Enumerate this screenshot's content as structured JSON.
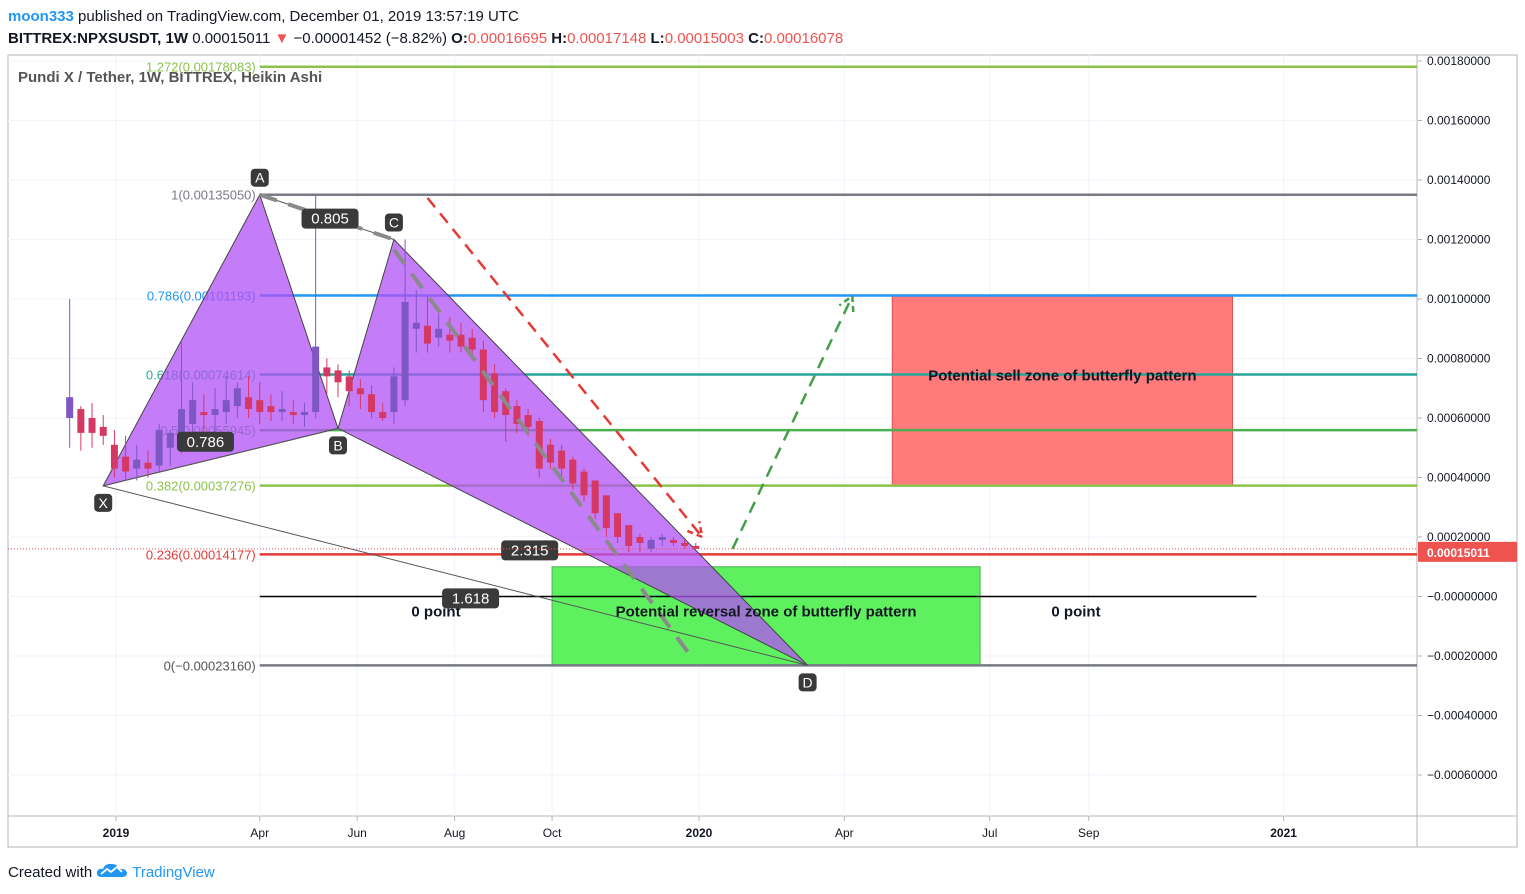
{
  "header": {
    "publisher": "moon333",
    "published_text": "published on TradingView.com, December 01, 2019 13:57:19 UTC",
    "symbol": "BITTREX:NPXSUSDT, 1W",
    "last_price": "0.00015011",
    "change_arrow": "▼",
    "change": "−0.00001452 (−8.82%)",
    "ohlc": [
      {
        "label": "O:",
        "value": "0.00016695"
      },
      {
        "label": "H:",
        "value": "0.00017148"
      },
      {
        "label": "L:",
        "value": "0.00015003"
      },
      {
        "label": "C:",
        "value": "0.00016078"
      }
    ]
  },
  "footer": {
    "created_with": "Created with",
    "brand": "TradingView",
    "icon": "tradingview-cloud-icon"
  },
  "chart_data": {
    "type": "candlestick",
    "title": "Pundi X / Tether, 1W, BITTREX, Heikin Ashi",
    "y_axis": {
      "ylim": [
        -0.0008,
        0.0018
      ],
      "ticks": [
        0.0018,
        0.0016,
        0.0014,
        0.0012,
        0.001,
        0.0008,
        0.0006,
        0.0004,
        0.0002,
        0.0,
        -0.0002,
        -0.0004,
        -0.0006
      ],
      "tick_labels": [
        "0.00180000",
        "0.00160000",
        "0.00140000",
        "0.00120000",
        "0.00100000",
        "0.00080000",
        "0.00060000",
        "0.00040000",
        "0.00020000",
        "−0.00000000",
        "−0.00020000",
        "−0.00040000",
        "−0.00060000"
      ],
      "last_price_label": "0.00015011",
      "last_price_value": 0.00015011
    },
    "x_axis": {
      "date_range": [
        "2018-11-19",
        "2021-03-15"
      ],
      "ticks": [
        {
          "date": "2019-01-01",
          "label": "2019",
          "bold": true
        },
        {
          "date": "2019-04-01",
          "label": "Apr"
        },
        {
          "date": "2019-06-01",
          "label": "Jun"
        },
        {
          "date": "2019-08-01",
          "label": "Aug"
        },
        {
          "date": "2019-10-01",
          "label": "Oct"
        },
        {
          "date": "2020-01-01",
          "label": "2020",
          "bold": true
        },
        {
          "date": "2020-04-01",
          "label": "Apr"
        },
        {
          "date": "2020-07-01",
          "label": "Jul"
        },
        {
          "date": "2020-09-01",
          "label": "Sep"
        },
        {
          "date": "2021-01-01",
          "label": "2021",
          "bold": true
        }
      ]
    },
    "grid": true,
    "up_color": "#7e57c2",
    "down_color": "#d63864",
    "candles": [
      {
        "date": "2018-12-03",
        "o": 0.0006,
        "h": 0.001,
        "l": 0.0005,
        "c": 0.00067
      },
      {
        "date": "2018-12-10",
        "o": 0.00063,
        "h": 0.00064,
        "l": 0.00049,
        "c": 0.00055
      },
      {
        "date": "2018-12-17",
        "o": 0.0006,
        "h": 0.00065,
        "l": 0.0005,
        "c": 0.00055
      },
      {
        "date": "2018-12-24",
        "o": 0.00057,
        "h": 0.00061,
        "l": 0.00051,
        "c": 0.00054
      },
      {
        "date": "2018-12-31",
        "o": 0.00051,
        "h": 0.00056,
        "l": 0.0004,
        "c": 0.00043
      },
      {
        "date": "2019-01-07",
        "o": 0.00047,
        "h": 0.00054,
        "l": 0.00039,
        "c": 0.00042
      },
      {
        "date": "2019-01-14",
        "o": 0.00043,
        "h": 0.00051,
        "l": 0.00039,
        "c": 0.00046
      },
      {
        "date": "2019-01-21",
        "o": 0.00045,
        "h": 0.00049,
        "l": 0.0004,
        "c": 0.00043
      },
      {
        "date": "2019-01-28",
        "o": 0.00044,
        "h": 0.00058,
        "l": 0.00042,
        "c": 0.00056
      },
      {
        "date": "2019-02-04",
        "o": 0.0005,
        "h": 0.00056,
        "l": 0.00044,
        "c": 0.00055
      },
      {
        "date": "2019-02-11",
        "o": 0.00053,
        "h": 0.00086,
        "l": 0.00048,
        "c": 0.00063
      },
      {
        "date": "2019-02-18",
        "o": 0.00058,
        "h": 0.00072,
        "l": 0.00052,
        "c": 0.00066
      },
      {
        "date": "2019-02-25",
        "o": 0.00062,
        "h": 0.00068,
        "l": 0.00052,
        "c": 0.00061
      },
      {
        "date": "2019-03-04",
        "o": 0.00061,
        "h": 0.0007,
        "l": 0.00054,
        "c": 0.00063
      },
      {
        "date": "2019-03-11",
        "o": 0.00062,
        "h": 0.00074,
        "l": 0.00058,
        "c": 0.00066
      },
      {
        "date": "2019-03-18",
        "o": 0.00064,
        "h": 0.00072,
        "l": 0.0006,
        "c": 0.0007
      },
      {
        "date": "2019-03-25",
        "o": 0.00067,
        "h": 0.00074,
        "l": 0.0006,
        "c": 0.00063
      },
      {
        "date": "2019-04-01",
        "o": 0.00066,
        "h": 0.00072,
        "l": 0.00058,
        "c": 0.00062
      },
      {
        "date": "2019-04-08",
        "o": 0.00064,
        "h": 0.00068,
        "l": 0.00059,
        "c": 0.00062
      },
      {
        "date": "2019-04-15",
        "o": 0.00062,
        "h": 0.00069,
        "l": 0.00059,
        "c": 0.00063
      },
      {
        "date": "2019-04-22",
        "o": 0.00062,
        "h": 0.00066,
        "l": 0.00058,
        "c": 0.00061
      },
      {
        "date": "2019-04-29",
        "o": 0.00061,
        "h": 0.00065,
        "l": 0.00057,
        "c": 0.00062
      },
      {
        "date": "2019-05-06",
        "o": 0.00062,
        "h": 0.00135,
        "l": 0.0006,
        "c": 0.00084
      },
      {
        "date": "2019-05-13",
        "o": 0.00077,
        "h": 0.0008,
        "l": 0.00068,
        "c": 0.00074
      },
      {
        "date": "2019-05-20",
        "o": 0.00076,
        "h": 0.00078,
        "l": 0.00067,
        "c": 0.00072
      },
      {
        "date": "2019-05-27",
        "o": 0.00074,
        "h": 0.00076,
        "l": 0.00064,
        "c": 0.00069
      },
      {
        "date": "2019-06-03",
        "o": 0.0007,
        "h": 0.00073,
        "l": 0.00063,
        "c": 0.00068
      },
      {
        "date": "2019-06-10",
        "o": 0.00068,
        "h": 0.00071,
        "l": 0.0006,
        "c": 0.00062
      },
      {
        "date": "2019-06-17",
        "o": 0.00062,
        "h": 0.00065,
        "l": 0.00059,
        "c": 0.0006
      },
      {
        "date": "2019-06-24",
        "o": 0.00062,
        "h": 0.00077,
        "l": 0.00058,
        "c": 0.00074
      },
      {
        "date": "2019-07-01",
        "o": 0.00066,
        "h": 0.0012,
        "l": 0.00064,
        "c": 0.00099
      },
      {
        "date": "2019-07-08",
        "o": 0.0009,
        "h": 0.00103,
        "l": 0.00082,
        "c": 0.00092
      },
      {
        "date": "2019-07-15",
        "o": 0.00091,
        "h": 0.00101,
        "l": 0.00082,
        "c": 0.00085
      },
      {
        "date": "2019-07-22",
        "o": 0.00087,
        "h": 0.00095,
        "l": 0.00084,
        "c": 0.0009
      },
      {
        "date": "2019-07-29",
        "o": 0.00088,
        "h": 0.00094,
        "l": 0.00082,
        "c": 0.00086
      },
      {
        "date": "2019-08-05",
        "o": 0.00088,
        "h": 0.00092,
        "l": 0.00082,
        "c": 0.00084
      },
      {
        "date": "2019-08-12",
        "o": 0.00087,
        "h": 0.0009,
        "l": 0.0008,
        "c": 0.00083
      },
      {
        "date": "2019-08-19",
        "o": 0.00083,
        "h": 0.00086,
        "l": 0.00062,
        "c": 0.00066
      },
      {
        "date": "2019-08-26",
        "o": 0.00075,
        "h": 0.00078,
        "l": 0.0006,
        "c": 0.00062
      },
      {
        "date": "2019-09-02",
        "o": 0.00069,
        "h": 0.0007,
        "l": 0.00052,
        "c": 0.00061
      },
      {
        "date": "2019-09-09",
        "o": 0.00064,
        "h": 0.00066,
        "l": 0.00055,
        "c": 0.00058
      },
      {
        "date": "2019-09-16",
        "o": 0.00061,
        "h": 0.00063,
        "l": 0.00054,
        "c": 0.00057
      },
      {
        "date": "2019-09-23",
        "o": 0.00059,
        "h": 0.0006,
        "l": 0.0004,
        "c": 0.00043
      },
      {
        "date": "2019-09-30",
        "o": 0.00051,
        "h": 0.00053,
        "l": 0.00043,
        "c": 0.00045
      },
      {
        "date": "2019-10-07",
        "o": 0.00049,
        "h": 0.00051,
        "l": 0.0004,
        "c": 0.00043
      },
      {
        "date": "2019-10-14",
        "o": 0.00046,
        "h": 0.00047,
        "l": 0.00036,
        "c": 0.00038
      },
      {
        "date": "2019-10-21",
        "o": 0.00042,
        "h": 0.00043,
        "l": 0.00032,
        "c": 0.00034
      },
      {
        "date": "2019-10-28",
        "o": 0.00039,
        "h": 0.00039,
        "l": 0.00026,
        "c": 0.00028
      },
      {
        "date": "2019-11-04",
        "o": 0.00034,
        "h": 0.00034,
        "l": 0.0002,
        "c": 0.00023
      },
      {
        "date": "2019-11-11",
        "o": 0.00028,
        "h": 0.00028,
        "l": 0.00018,
        "c": 0.0002
      },
      {
        "date": "2019-11-18",
        "o": 0.00024,
        "h": 0.00024,
        "l": 0.00015,
        "c": 0.00017
      },
      {
        "date": "2019-11-25",
        "o": 0.0002,
        "h": 0.00021,
        "l": 0.00015,
        "c": 0.00018
      },
      {
        "date": "2019-12-02",
        "o": 0.00016,
        "h": 0.0002,
        "l": 0.00015,
        "c": 0.00019
      },
      {
        "date": "2019-12-09",
        "o": 0.00019,
        "h": 0.00021,
        "l": 0.00017,
        "c": 0.0002
      },
      {
        "date": "2019-12-16",
        "o": 0.00019,
        "h": 0.0002,
        "l": 0.00017,
        "c": 0.00018
      },
      {
        "date": "2019-12-23",
        "o": 0.00018,
        "h": 0.00019,
        "l": 0.00016,
        "c": 0.00017
      },
      {
        "date": "2019-12-30",
        "o": 0.00017,
        "h": 0.00018,
        "l": 0.00016,
        "c": 0.00016
      }
    ],
    "fib_levels": [
      {
        "label": "1.272(0.00178083)",
        "value": 0.00178083,
        "color": "#8bc34a",
        "start": "2019-04-01",
        "text_color": "#8bc34a"
      },
      {
        "label": "1(0.00135050)",
        "value": 0.0013505,
        "color": "#787b86",
        "start": "2019-04-01",
        "text_color": "#787b86"
      },
      {
        "label": "0.786(0.00101193)",
        "value": 0.00101193,
        "color": "#2196f3",
        "start": "2019-04-01",
        "text_color": "#2196f3"
      },
      {
        "label": "0.618(0.00074614)",
        "value": 0.00074614,
        "color": "#26a69a",
        "start": "2019-04-01",
        "text_color": "#26a69a"
      },
      {
        "label": "0.5(0.00055945)",
        "value": 0.00055945,
        "color": "#4caf50",
        "start": "2019-04-01",
        "text_color": "#4caf50"
      },
      {
        "label": "0.382(0.00037276)",
        "value": 0.00037276,
        "color": "#8bc34a",
        "start": "2019-04-01",
        "text_color": "#8bc34a"
      },
      {
        "label": "0.236(0.00014177)",
        "value": 0.00014177,
        "color": "#e53935",
        "start": "2019-04-01",
        "text_color": "#e53935"
      },
      {
        "label": "0(−0.00023160)",
        "value": -0.0002316,
        "color": "#787b86",
        "start": "2019-04-01",
        "text_color": "#555555"
      }
    ],
    "zero_line": {
      "value": 0.0,
      "start": "2019-04-01",
      "end": "2020-12-15",
      "left_label": "0 point",
      "right_label": "0 point"
    },
    "zones": [
      {
        "name": "Potential sell zone of butterfly pattern",
        "x0": "2020-05-01",
        "x1": "2020-11-30",
        "y0": 0.00037276,
        "y1": 0.00101193,
        "fill": "#ff7b7b",
        "stroke": "#e05050"
      },
      {
        "name": "Potential reversal zone of butterfly pattern",
        "x0": "2019-10-01",
        "x1": "2020-06-25",
        "y0": -0.0002316,
        "y1": 0.0001,
        "fill": "#5ef05e",
        "stroke": "#4caf50"
      }
    ],
    "pattern_points": [
      {
        "label": "X",
        "date": "2018-12-24",
        "value": 0.000372
      },
      {
        "label": "A",
        "date": "2019-04-01",
        "value": 0.0013505
      },
      {
        "label": "B",
        "date": "2019-05-20",
        "value": 0.000565
      },
      {
        "label": "C",
        "date": "2019-06-24",
        "value": 0.0012
      },
      {
        "label": "D",
        "date": "2020-03-09",
        "value": -0.0002316
      }
    ],
    "ratios": [
      {
        "label": "0.786",
        "date": "2019-02-26",
        "value": 0.00052
      },
      {
        "label": "0.805",
        "date": "2019-05-15",
        "value": 0.00127
      },
      {
        "label": "2.315",
        "date": "2019-09-17",
        "value": 0.000155
      },
      {
        "label": "1.618",
        "date": "2019-08-11",
        "value": -6.5e-06
      }
    ],
    "projections": [
      {
        "color": "#e53935",
        "points": [
          {
            "date": "2019-07-15",
            "value": 0.00134
          },
          {
            "date": "2020-01-03",
            "value": 0.0002
          }
        ]
      },
      {
        "color": "#43a047",
        "points": [
          {
            "date": "2020-01-22",
            "value": 0.00016
          },
          {
            "date": "2020-04-06",
            "value": 0.00101
          }
        ]
      }
    ]
  }
}
